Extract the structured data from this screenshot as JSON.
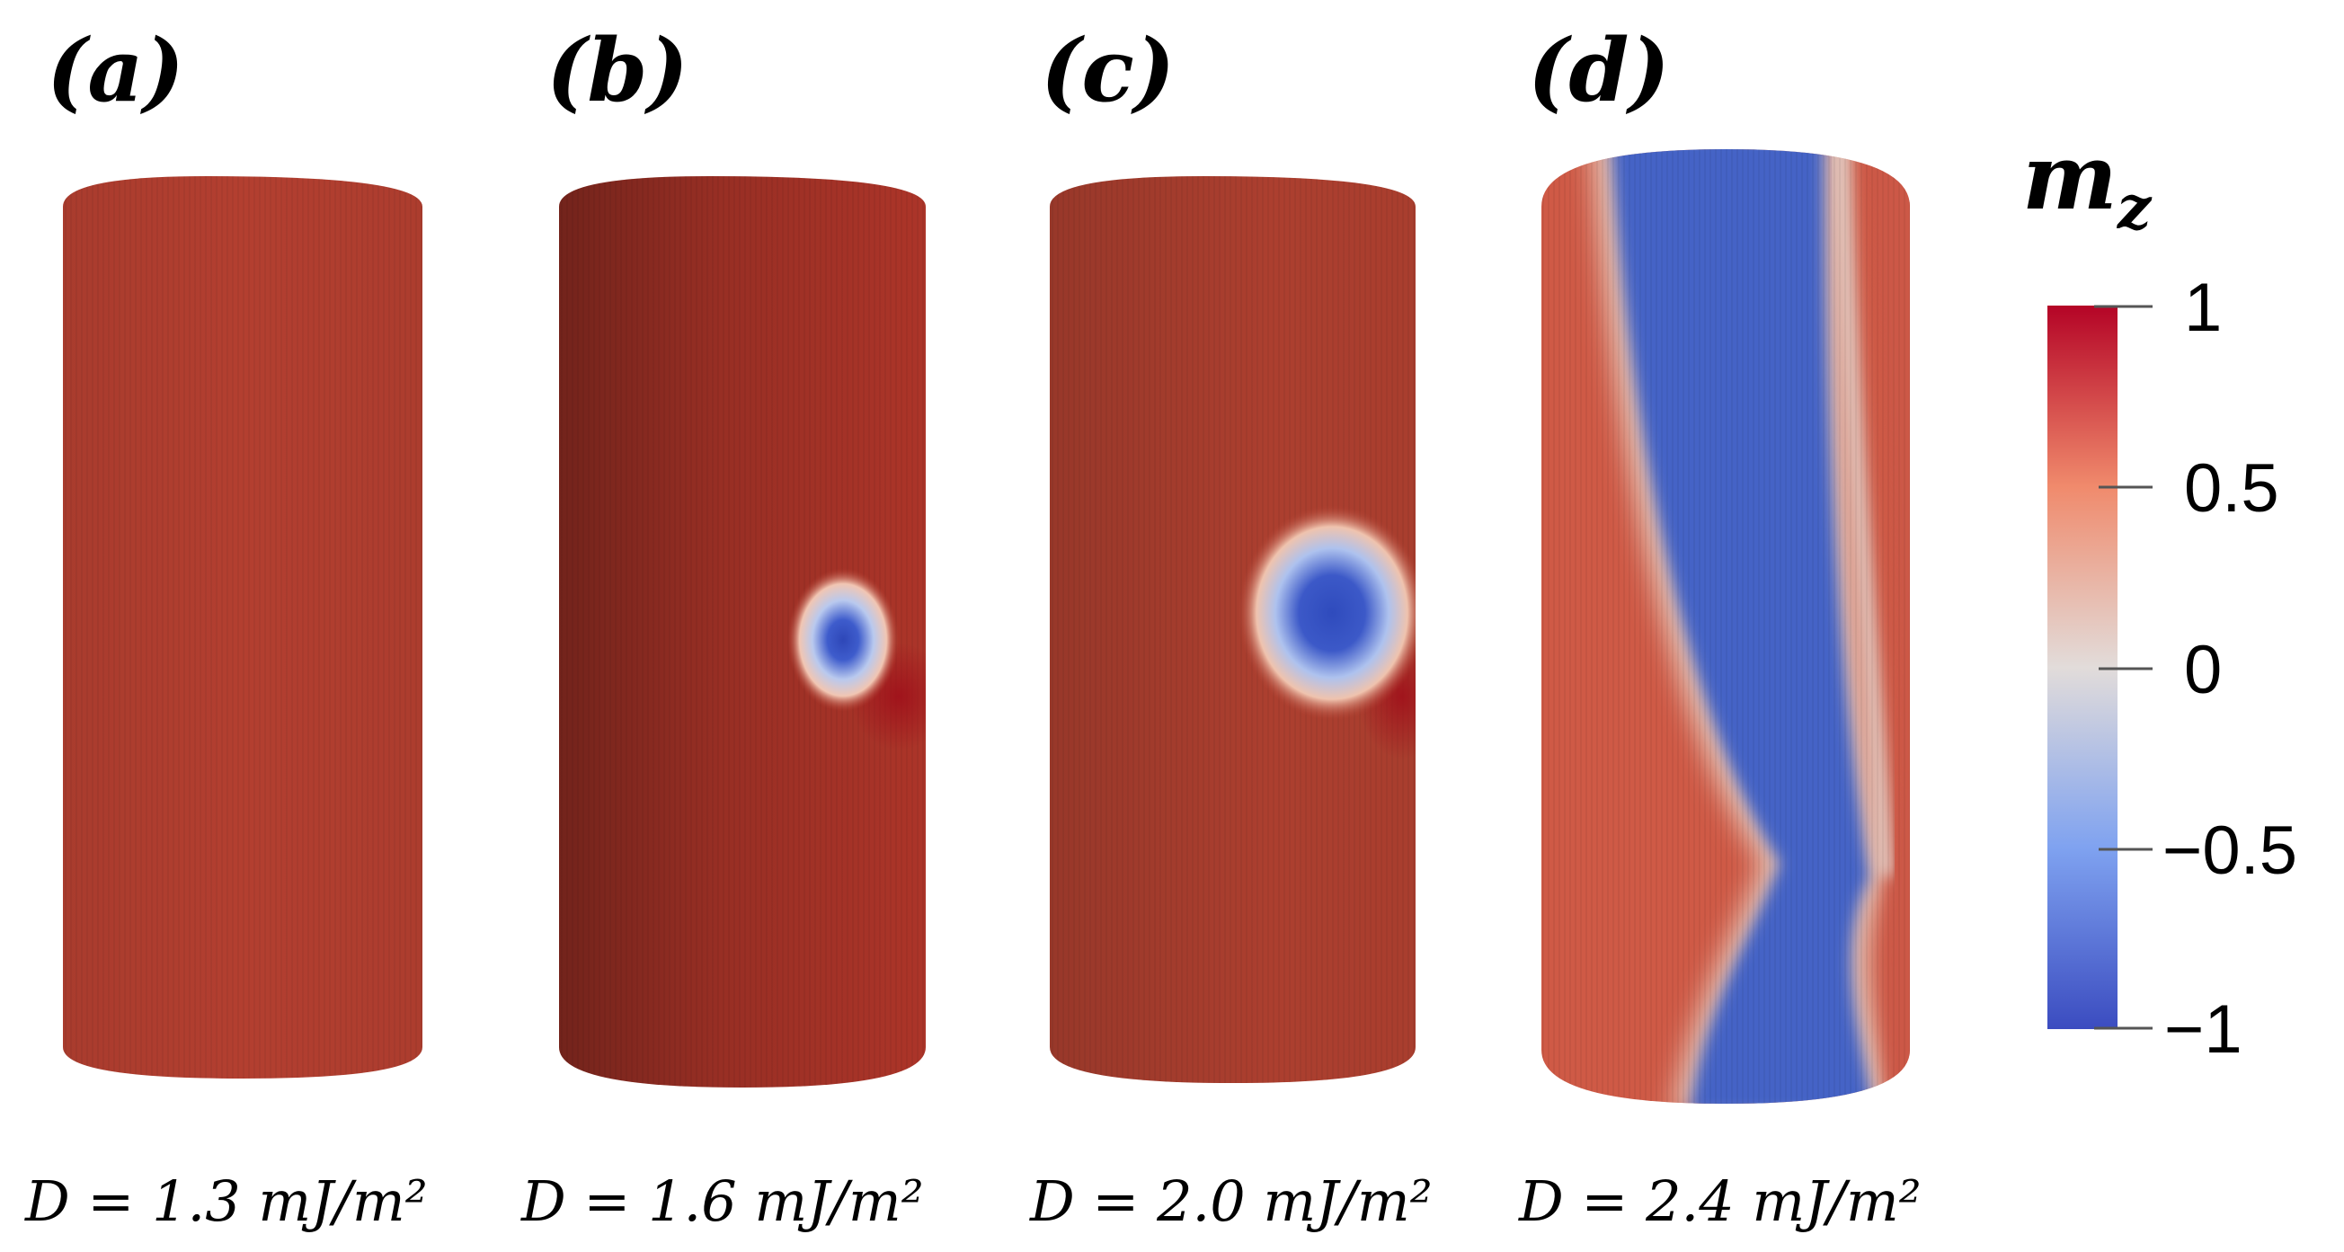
{
  "panels": [
    {
      "label": "(a)",
      "caption": "D = 1.3 mJ/m²",
      "skyrmion": "none"
    },
    {
      "label": "(b)",
      "caption": "D = 1.6 mJ/m²",
      "skyrmion": "small"
    },
    {
      "label": "(c)",
      "caption": "D = 2.0 mJ/m²",
      "skyrmion": "large"
    },
    {
      "label": "(d)",
      "caption": "D = 2.4 mJ/m²",
      "skyrmion": "helical-domain"
    }
  ],
  "colorbar": {
    "title_main": "m",
    "title_sub": "z",
    "ticks": [
      "1",
      "0.5",
      "0",
      "−0.5",
      "−1"
    ],
    "range": [
      -1,
      1
    ],
    "colors": {
      "max": "#b40426",
      "high": "#f08a6c",
      "mid": "#dddddd",
      "low": "#7fa2f0",
      "min": "#3b4cc0"
    }
  }
}
